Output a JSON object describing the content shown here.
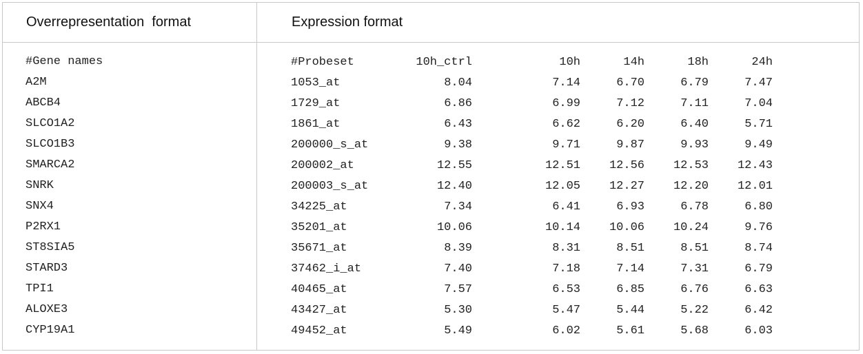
{
  "headers": {
    "left": "Overrepresentation  format",
    "right": "Expression format"
  },
  "genes": {
    "title": "#Gene names",
    "items": [
      "A2M",
      "ABCB4",
      "SLCO1A2",
      "SLCO1B3",
      "SMARCA2",
      "SNRK",
      "SNX4",
      "P2RX1",
      "ST8SIA5",
      "STARD3",
      "TPI1",
      "ALOXE3",
      "CYP19A1"
    ]
  },
  "expression": {
    "columns": [
      "#Probeset",
      "10h_ctrl",
      "10h",
      "14h",
      "18h",
      "24h"
    ],
    "rows": [
      [
        "1053_at",
        "8.04",
        "7.14",
        "6.70",
        "6.79",
        "7.47"
      ],
      [
        "1729_at",
        "6.86",
        "6.99",
        "7.12",
        "7.11",
        "7.04"
      ],
      [
        "1861_at",
        "6.43",
        "6.62",
        "6.20",
        "6.40",
        "5.71"
      ],
      [
        "200000_s_at",
        "9.38",
        "9.71",
        "9.87",
        "9.93",
        "9.49"
      ],
      [
        "200002_at",
        "12.55",
        "12.51",
        "12.56",
        "12.53",
        "12.43"
      ],
      [
        "200003_s_at",
        "12.40",
        "12.05",
        "12.27",
        "12.20",
        "12.01"
      ],
      [
        "34225_at",
        "7.34",
        "6.41",
        "6.93",
        "6.78",
        "6.80"
      ],
      [
        "35201_at",
        "10.06",
        "10.14",
        "10.06",
        "10.24",
        "9.76"
      ],
      [
        "35671_at",
        "8.39",
        "8.31",
        "8.51",
        "8.51",
        "8.74"
      ],
      [
        "37462_i_at",
        "7.40",
        "7.18",
        "7.14",
        "7.31",
        "6.79"
      ],
      [
        "40465_at",
        "7.57",
        "6.53",
        "6.85",
        "6.76",
        "6.63"
      ],
      [
        "43427_at",
        "5.30",
        "5.47",
        "5.44",
        "5.22",
        "6.42"
      ],
      [
        "49452_at",
        "5.49",
        "6.02",
        "5.61",
        "5.68",
        "6.03"
      ]
    ]
  }
}
